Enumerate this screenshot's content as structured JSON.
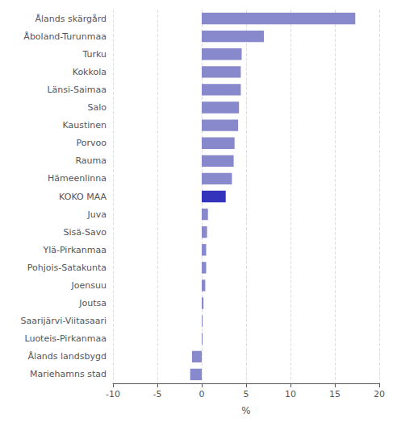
{
  "chart_data": {
    "type": "bar",
    "orientation": "horizontal",
    "categories": [
      "Ålands skärgård",
      "Åboland-Turunmaa",
      "Turku",
      "Kokkola",
      "Länsi-Saimaa",
      "Salo",
      "Kaustinen",
      "Porvoo",
      "Rauma",
      "Hämeenlinna",
      "KOKO MAA",
      "Juva",
      "Sisä-Savo",
      "Ylä-Pirkanmaa",
      "Pohjois-Satakunta",
      "Joensuu",
      "Joutsa",
      "Saarijärvi-Viitasaari",
      "Luoteis-Pirkanmaa",
      "Ålands landsbygd",
      "Mariehamns stad"
    ],
    "values": [
      17.3,
      7.0,
      4.5,
      4.4,
      4.4,
      4.2,
      4.1,
      3.7,
      3.6,
      3.4,
      2.7,
      0.7,
      0.6,
      0.5,
      0.5,
      0.4,
      0.2,
      0.1,
      0.1,
      -1.1,
      -1.3
    ],
    "colors": [
      "#8888cc",
      "#8888cc",
      "#8888cc",
      "#8888cc",
      "#8888cc",
      "#8888cc",
      "#8888cc",
      "#8888cc",
      "#8888cc",
      "#8888cc",
      "#3333bb",
      "#8888cc",
      "#8888cc",
      "#8888cc",
      "#8888cc",
      "#8888cc",
      "#8888cc",
      "#8888cc",
      "#8888cc",
      "#8888cc",
      "#8888cc"
    ],
    "xlabel": "%",
    "xlim": [
      -10,
      20
    ],
    "xticks": [
      -10,
      -5,
      0,
      5,
      10,
      15,
      20
    ],
    "grid": true
  }
}
